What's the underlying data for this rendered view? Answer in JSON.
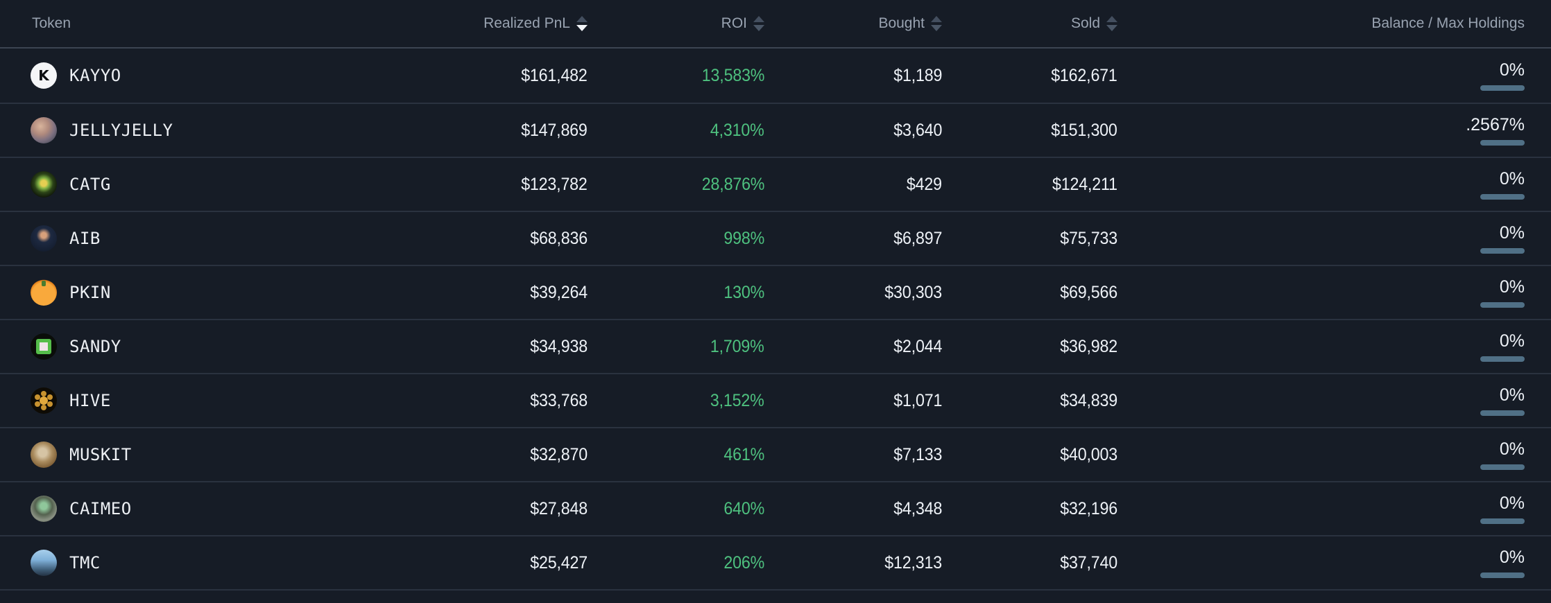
{
  "table": {
    "colors": {
      "background": "#161c26",
      "roi_positive": "#4ec17f",
      "balance_bar": "#507086"
    },
    "columns": [
      {
        "key": "token",
        "label": "Token",
        "align": "left",
        "sortable": false,
        "sort": null
      },
      {
        "key": "realized-pnl",
        "label": "Realized PnL",
        "align": "right",
        "sortable": true,
        "sort": "desc"
      },
      {
        "key": "roi",
        "label": "ROI",
        "align": "right",
        "sortable": true,
        "sort": null
      },
      {
        "key": "bought",
        "label": "Bought",
        "align": "right",
        "sortable": true,
        "sort": null
      },
      {
        "key": "sold",
        "label": "Sold",
        "align": "right",
        "sortable": true,
        "sort": null
      },
      {
        "key": "balance",
        "label": "Balance / Max Holdings",
        "align": "right",
        "sortable": false,
        "sort": null
      }
    ],
    "rows": [
      {
        "token": "KAYYO",
        "icon": "kayyo",
        "realized_pnl": "$161,482",
        "roi": "13,583%",
        "bought": "$1,189",
        "sold": "$162,671",
        "balance": "0%"
      },
      {
        "token": "JELLYJELLY",
        "icon": "jellyjelly",
        "realized_pnl": "$147,869",
        "roi": "4,310%",
        "bought": "$3,640",
        "sold": "$151,300",
        "balance": ".2567%"
      },
      {
        "token": "CATG",
        "icon": "catg",
        "realized_pnl": "$123,782",
        "roi": "28,876%",
        "bought": "$429",
        "sold": "$124,211",
        "balance": "0%"
      },
      {
        "token": "AIB",
        "icon": "aib",
        "realized_pnl": "$68,836",
        "roi": "998%",
        "bought": "$6,897",
        "sold": "$75,733",
        "balance": "0%"
      },
      {
        "token": "PKIN",
        "icon": "pkin",
        "realized_pnl": "$39,264",
        "roi": "130%",
        "bought": "$30,303",
        "sold": "$69,566",
        "balance": "0%"
      },
      {
        "token": "SANDY",
        "icon": "sandy",
        "realized_pnl": "$34,938",
        "roi": "1,709%",
        "bought": "$2,044",
        "sold": "$36,982",
        "balance": "0%"
      },
      {
        "token": "HIVE",
        "icon": "hive",
        "realized_pnl": "$33,768",
        "roi": "3,152%",
        "bought": "$1,071",
        "sold": "$34,839",
        "balance": "0%"
      },
      {
        "token": "MUSKIT",
        "icon": "muskit",
        "realized_pnl": "$32,870",
        "roi": "461%",
        "bought": "$7,133",
        "sold": "$40,003",
        "balance": "0%"
      },
      {
        "token": "CAIMEO",
        "icon": "caimeo",
        "realized_pnl": "$27,848",
        "roi": "640%",
        "bought": "$4,348",
        "sold": "$32,196",
        "balance": "0%"
      },
      {
        "token": "TMC",
        "icon": "tmc",
        "realized_pnl": "$25,427",
        "roi": "206%",
        "bought": "$12,313",
        "sold": "$37,740",
        "balance": "0%"
      }
    ]
  }
}
